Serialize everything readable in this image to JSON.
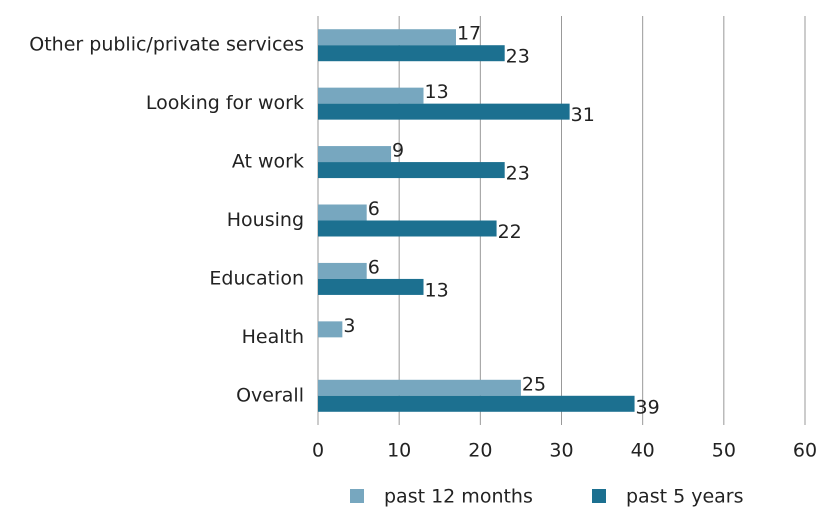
{
  "chart_data": {
    "type": "hbar",
    "categories": [
      "Other public/private services",
      "Looking for work",
      "At work",
      "Housing",
      "Education",
      "Health",
      "Overall"
    ],
    "series": [
      {
        "name": "past 12 months",
        "color": "#77a7bf",
        "values": [
          17,
          13,
          9,
          6,
          6,
          3,
          25
        ]
      },
      {
        "name": "past 5 years",
        "color": "#1c7090",
        "values": [
          23,
          31,
          23,
          22,
          13,
          null,
          39
        ]
      }
    ],
    "xlim": [
      0,
      60
    ],
    "xticks": [
      0,
      10,
      20,
      30,
      40,
      50,
      60
    ],
    "grid": true,
    "legend": "bottom"
  }
}
